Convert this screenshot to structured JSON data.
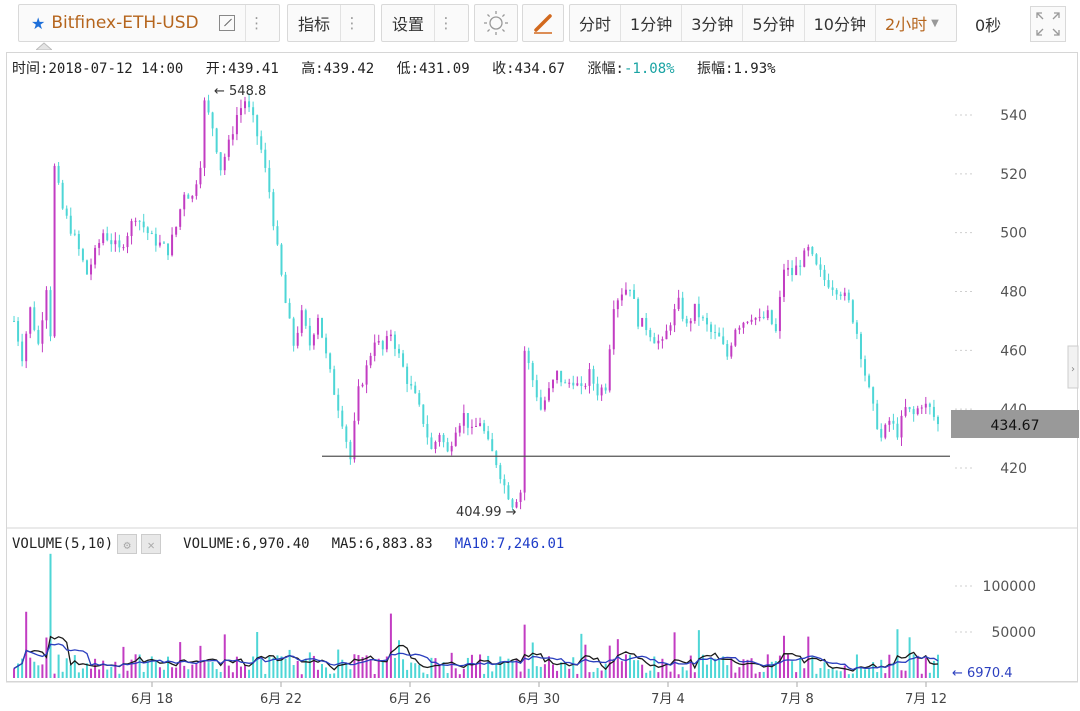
{
  "header": {
    "symbol": "Bitfinex-ETH-USD",
    "indicators_label": "指标",
    "settings_label": "设置",
    "periods": [
      "分时",
      "1分钟",
      "3分钟",
      "5分钟",
      "10分钟",
      "2小时"
    ],
    "active_period": "2小时",
    "countdown": "0秒",
    "icons": [
      "star-icon",
      "external-link-icon",
      "menu-dots-icon",
      "sun-theme-icon",
      "pencil-draw-icon",
      "dropdown-caret-icon",
      "fullscreen-icon"
    ]
  },
  "info": {
    "time_label": "时间:",
    "time": "2018-07-12 14:00",
    "open_label": "开:",
    "open": "439.41",
    "high_label": "高:",
    "high": "439.42",
    "low_label": "低:",
    "low": "431.09",
    "close_label": "收:",
    "close": "434.67",
    "change_label": "涨幅:",
    "change": "-1.08%",
    "amplitude_label": "振幅:",
    "amplitude": "1.93%"
  },
  "volume_info": {
    "label": "VOLUME(5,10)",
    "volume": "VOLUME:6,970.40",
    "ma5": "MA5:6,883.83",
    "ma10": "MA10:7,246.01"
  },
  "colors": {
    "up": "#c23cc2",
    "down": "#4ed6d6",
    "ma5": "#1a1a1a",
    "ma10": "#2b3fbf",
    "price_tag_bg": "#999999",
    "accent": "#b5651d"
  },
  "chart_data": {
    "type": "candlestick",
    "price_axis": {
      "ticks": [
        420,
        440,
        460,
        480,
        500,
        520,
        540
      ],
      "range": [
        404,
        552
      ]
    },
    "volume_axis": {
      "ticks": [
        50000,
        100000
      ],
      "range": [
        0,
        140000
      ]
    },
    "x_ticks": [
      "6月 18",
      "6月 22",
      "6月 26",
      "6月 30",
      "7月 4",
      "7月 8",
      "7月 12"
    ],
    "annotations": {
      "high": "548.8",
      "low": "404.99",
      "last_price": "434.67",
      "last_volume": "6970.4",
      "horizontal_line": 424
    },
    "price_path": [
      [
        0,
        470
      ],
      [
        2,
        458
      ],
      [
        4,
        474
      ],
      [
        6,
        462
      ],
      [
        8,
        482
      ],
      [
        9,
        466
      ],
      [
        10,
        522
      ],
      [
        12,
        508
      ],
      [
        15,
        498
      ],
      [
        18,
        486
      ],
      [
        22,
        500
      ],
      [
        26,
        494
      ],
      [
        30,
        506
      ],
      [
        34,
        498
      ],
      [
        38,
        494
      ],
      [
        40,
        502
      ],
      [
        42,
        514
      ],
      [
        44,
        512
      ],
      [
        46,
        524
      ],
      [
        47,
        544
      ],
      [
        49,
        536
      ],
      [
        51,
        522
      ],
      [
        53,
        530
      ],
      [
        55,
        540
      ],
      [
        57,
        545
      ],
      [
        59,
        538
      ],
      [
        61,
        528
      ],
      [
        63,
        514
      ],
      [
        65,
        494
      ],
      [
        67,
        476
      ],
      [
        69,
        462
      ],
      [
        71,
        472
      ],
      [
        73,
        462
      ],
      [
        75,
        472
      ],
      [
        77,
        458
      ],
      [
        79,
        446
      ],
      [
        81,
        436
      ],
      [
        83,
        423
      ],
      [
        85,
        446
      ],
      [
        87,
        454
      ],
      [
        89,
        464
      ],
      [
        91,
        460
      ],
      [
        93,
        466
      ],
      [
        95,
        458
      ],
      [
        97,
        450
      ],
      [
        99,
        444
      ],
      [
        101,
        436
      ],
      [
        103,
        426
      ],
      [
        105,
        432
      ],
      [
        107,
        425
      ],
      [
        109,
        434
      ],
      [
        111,
        438
      ],
      [
        113,
        432
      ],
      [
        115,
        436
      ],
      [
        117,
        428
      ],
      [
        119,
        422
      ],
      [
        121,
        414
      ],
      [
        123,
        408
      ],
      [
        125,
        412
      ],
      [
        126,
        460
      ],
      [
        128,
        450
      ],
      [
        130,
        440
      ],
      [
        132,
        446
      ],
      [
        134,
        452
      ],
      [
        136,
        448
      ],
      [
        138,
        450
      ],
      [
        140,
        446
      ],
      [
        142,
        452
      ],
      [
        144,
        446
      ],
      [
        146,
        448
      ],
      [
        148,
        476
      ],
      [
        150,
        480
      ],
      [
        152,
        482
      ],
      [
        154,
        470
      ],
      [
        156,
        468
      ],
      [
        158,
        464
      ],
      [
        160,
        462
      ],
      [
        162,
        470
      ],
      [
        164,
        476
      ],
      [
        166,
        468
      ],
      [
        168,
        474
      ],
      [
        170,
        470
      ],
      [
        172,
        466
      ],
      [
        174,
        464
      ],
      [
        176,
        458
      ],
      [
        178,
        468
      ],
      [
        180,
        470
      ],
      [
        182,
        472
      ],
      [
        184,
        470
      ],
      [
        186,
        472
      ],
      [
        188,
        466
      ],
      [
        190,
        488
      ],
      [
        192,
        486
      ],
      [
        194,
        490
      ],
      [
        196,
        494
      ],
      [
        198,
        488
      ],
      [
        200,
        484
      ],
      [
        202,
        482
      ],
      [
        204,
        480
      ],
      [
        206,
        476
      ],
      [
        208,
        466
      ],
      [
        210,
        452
      ],
      [
        212,
        440
      ],
      [
        214,
        430
      ],
      [
        216,
        436
      ],
      [
        218,
        432
      ],
      [
        220,
        440
      ],
      [
        222,
        438
      ],
      [
        224,
        442
      ],
      [
        226,
        440
      ],
      [
        228,
        434.67
      ]
    ],
    "volume_spikes": [
      [
        9,
        135000
      ],
      [
        3,
        72000
      ],
      [
        93,
        70000
      ],
      [
        126,
        58000
      ],
      [
        169,
        52000
      ],
      [
        196,
        45000
      ],
      [
        218,
        53000
      ],
      [
        140,
        48000
      ],
      [
        60,
        50000
      ]
    ],
    "series_names": [
      "VOLUME",
      "MA5",
      "MA10"
    ]
  }
}
